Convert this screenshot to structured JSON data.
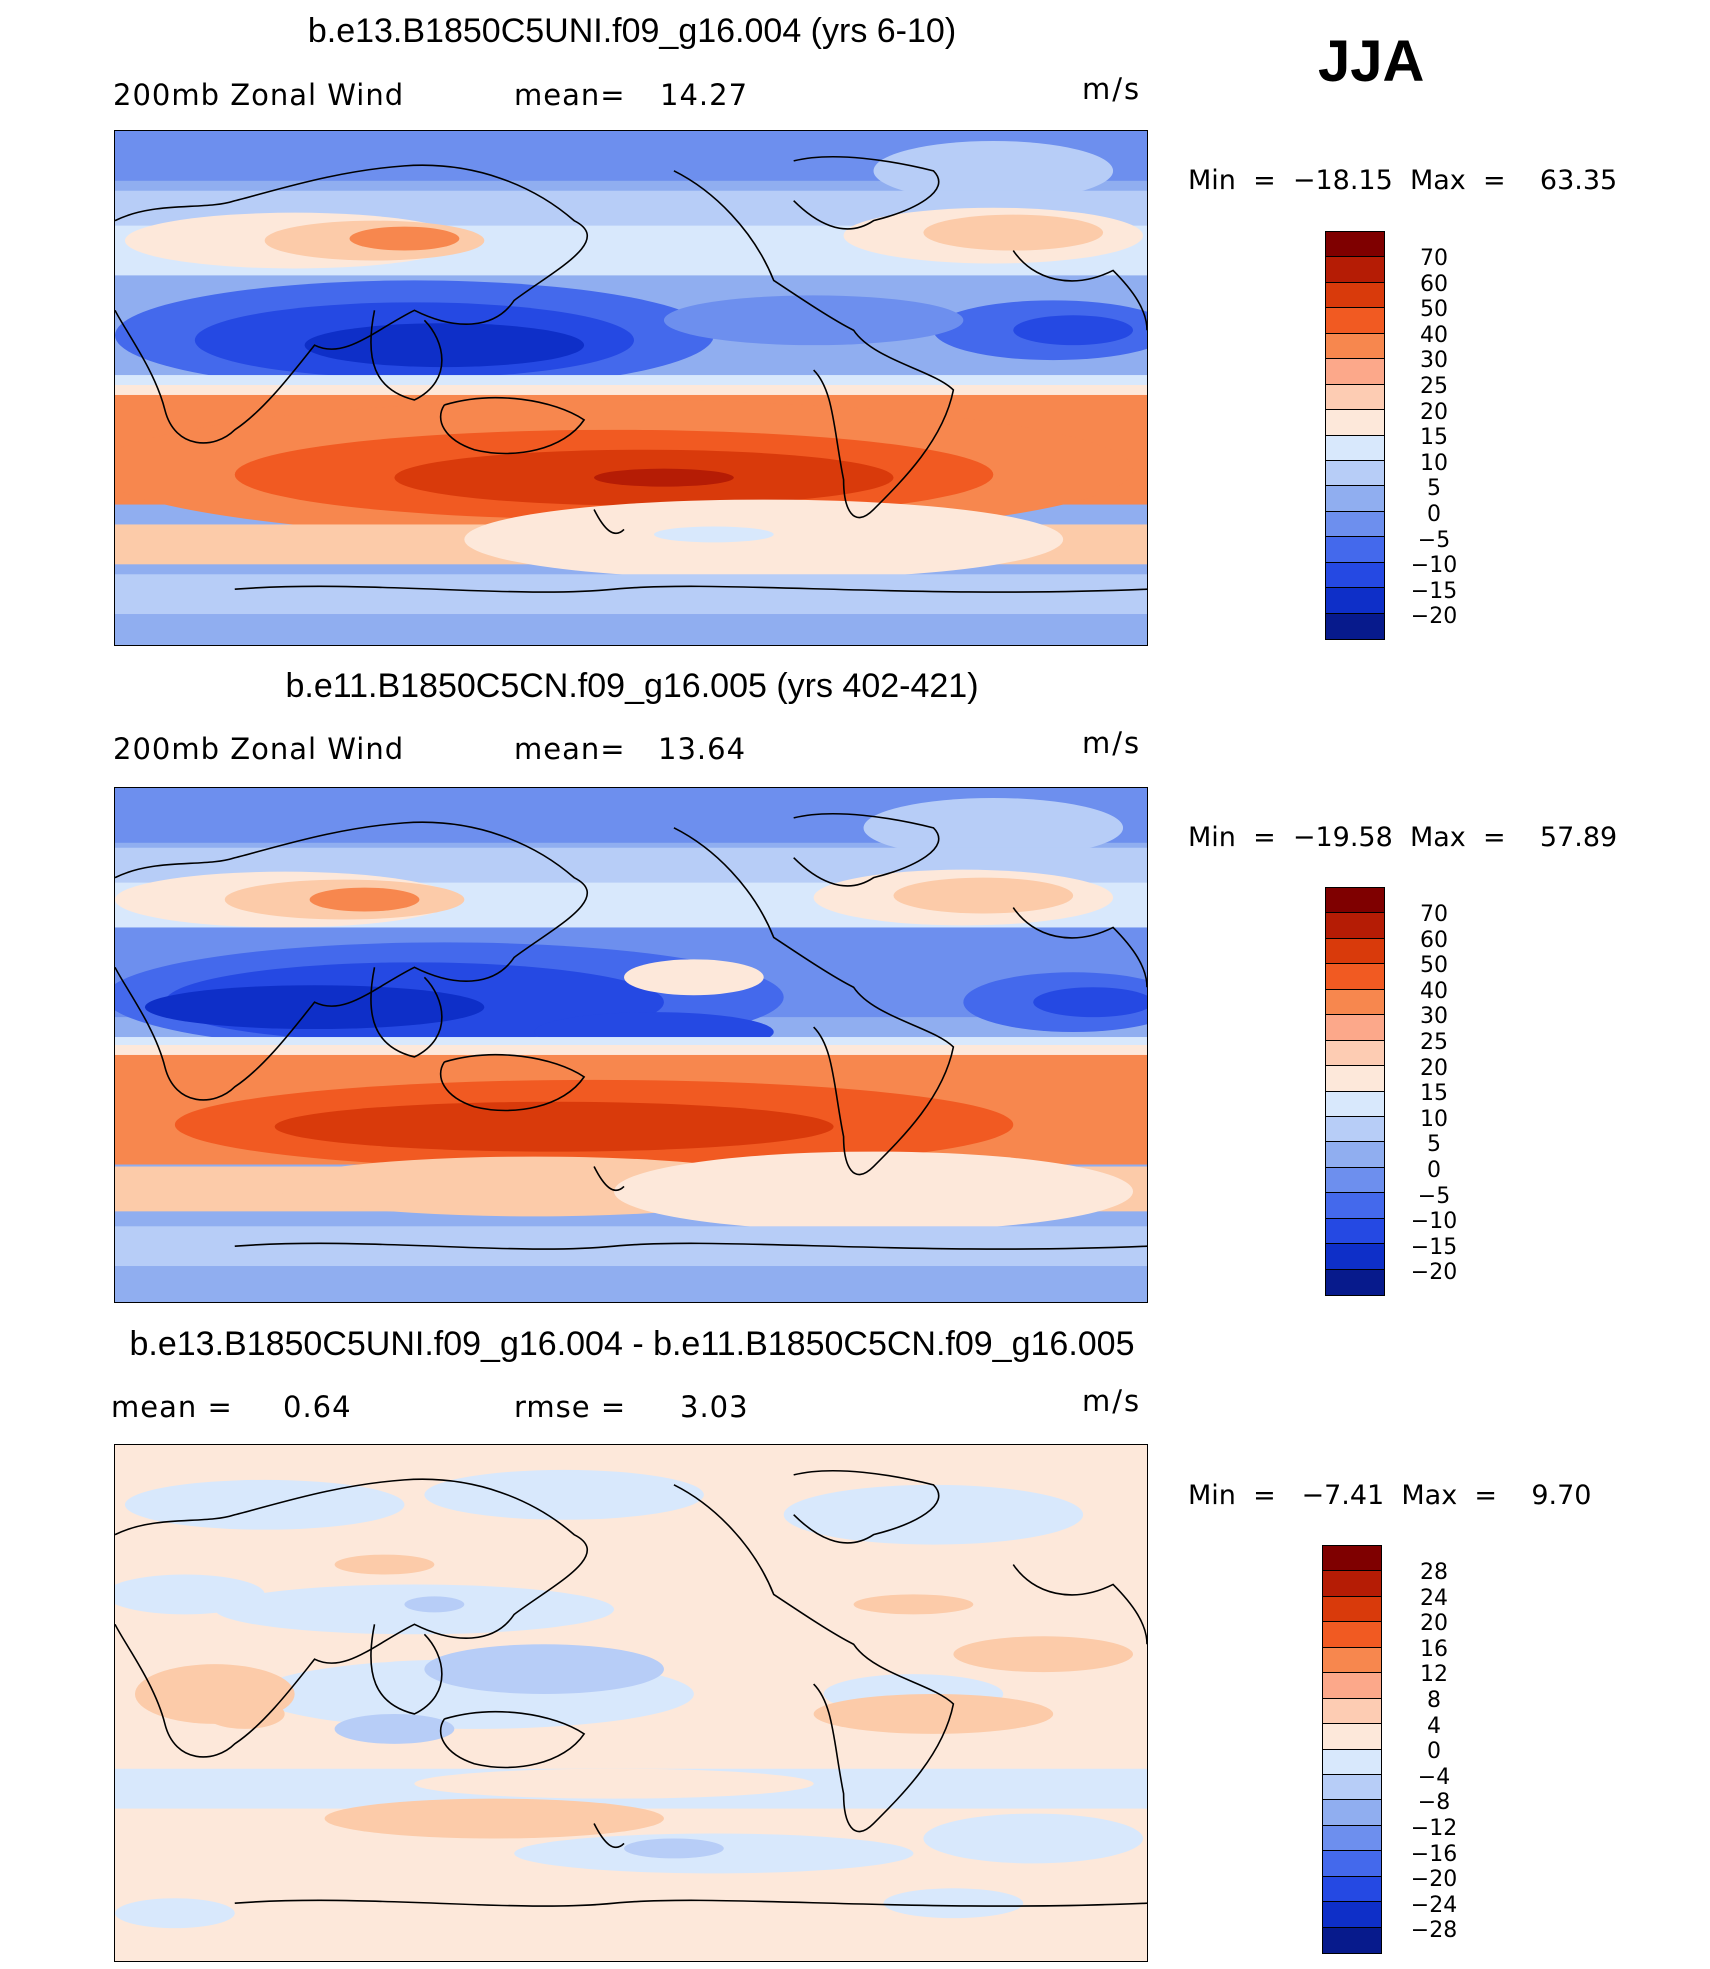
{
  "season_label": "JJA",
  "panels": [
    {
      "title": "b.e13.B1850C5UNI.f09_g16.004 (yrs 6-10)",
      "variable": "200mb Zonal Wind",
      "stat1_label": "mean=",
      "stat1_value": "14.27",
      "units": "m/s",
      "min_label": "Min",
      "min_value": "−18.15",
      "max_label": "Max",
      "max_value": "63.35",
      "colorbar": {
        "labels": [
          "70",
          "60",
          "50",
          "40",
          "30",
          "25",
          "20",
          "15",
          "10",
          "5",
          "0",
          "−5",
          "−10",
          "−15",
          "−20"
        ],
        "colors": [
          "#7f0000",
          "#b51c05",
          "#d93a0b",
          "#f15a22",
          "#f7874e",
          "#fca88a",
          "#fdccb3",
          "#fde8da",
          "#d8e8fc",
          "#b7cdf7",
          "#90aef0",
          "#6d8fee",
          "#4469ec",
          "#2549e3",
          "#0e2fc8",
          "#071a8c"
        ]
      },
      "map_scale": [
        -20,
        70
      ]
    },
    {
      "title": "b.e11.B1850C5CN.f09_g16.005 (yrs 402-421)",
      "variable": "200mb Zonal Wind",
      "stat1_label": "mean=",
      "stat1_value": "13.64",
      "units": "m/s",
      "min_label": "Min",
      "min_value": "−19.58",
      "max_label": "Max",
      "max_value": "57.89",
      "colorbar": {
        "labels": [
          "70",
          "60",
          "50",
          "40",
          "30",
          "25",
          "20",
          "15",
          "10",
          "5",
          "0",
          "−5",
          "−10",
          "−15",
          "−20"
        ],
        "colors": [
          "#7f0000",
          "#b51c05",
          "#d93a0b",
          "#f15a22",
          "#f7874e",
          "#fca88a",
          "#fdccb3",
          "#fde8da",
          "#d8e8fc",
          "#b7cdf7",
          "#90aef0",
          "#6d8fee",
          "#4469ec",
          "#2549e3",
          "#0e2fc8",
          "#071a8c"
        ]
      },
      "map_scale": [
        -20,
        70
      ]
    },
    {
      "title": "b.e13.B1850C5UNI.f09_g16.004 - b.e11.B1850C5CN.f09_g16.005",
      "stat1_label": "mean =",
      "stat1_value": "0.64",
      "stat2_label": "rmse =",
      "stat2_value": "3.03",
      "units": "m/s",
      "min_label": "Min",
      "min_value": "−7.41",
      "max_label": "Max",
      "max_value": "9.70",
      "colorbar": {
        "labels": [
          "28",
          "24",
          "20",
          "16",
          "12",
          "8",
          "4",
          "0",
          "−4",
          "−8",
          "−12",
          "−16",
          "−20",
          "−24",
          "−28"
        ],
        "colors": [
          "#7f0000",
          "#b51c05",
          "#d93a0b",
          "#f15a22",
          "#f7874e",
          "#fca88a",
          "#fdccb3",
          "#fde8da",
          "#d8e8fc",
          "#b7cdf7",
          "#90aef0",
          "#6d8fee",
          "#4469ec",
          "#2549e3",
          "#0e2fc8",
          "#071a8c"
        ]
      },
      "map_scale": [
        -28,
        28
      ]
    }
  ]
}
